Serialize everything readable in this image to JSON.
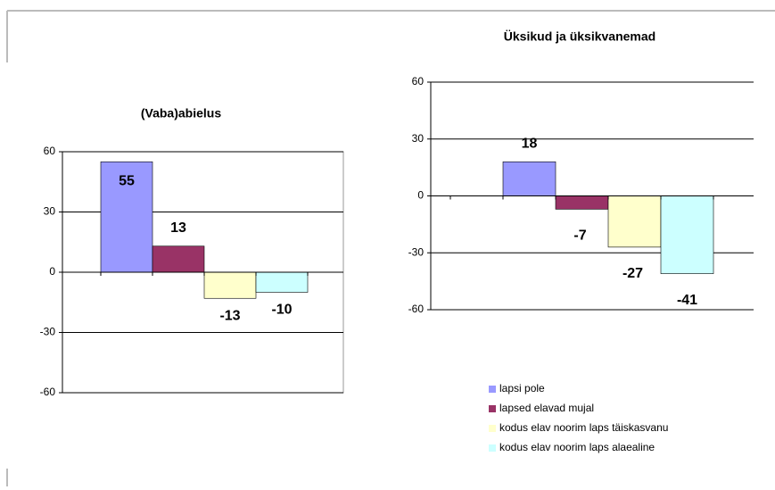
{
  "chart_data": [
    {
      "type": "bar",
      "title": "(Vaba)abielus",
      "series": [
        {
          "color": "#9999ff",
          "values": [
            55
          ]
        },
        {
          "color": "#993366",
          "values": [
            13
          ]
        },
        {
          "color": "#ffffcc",
          "values": [
            -13
          ]
        },
        {
          "color": "#ccffff",
          "values": [
            -10
          ]
        }
      ],
      "ylim": [
        -60,
        60
      ],
      "yticks": [
        -60,
        -30,
        0,
        30,
        60
      ],
      "grid": true
    },
    {
      "type": "bar",
      "title": "Üksikud ja üksikvanemad",
      "series": [
        {
          "name": "lapsi pole",
          "color": "#9999ff",
          "values": [
            18
          ]
        },
        {
          "name": "lapsed elavad mujal",
          "color": "#993366",
          "values": [
            -7
          ]
        },
        {
          "name": "kodus elav noorim laps täiskasvanu",
          "color": "#ffffcc",
          "values": [
            -27
          ]
        },
        {
          "name": "kodus elav noorim laps alaealine",
          "color": "#ccffff",
          "values": [
            -41
          ]
        }
      ],
      "ylim": [
        -60,
        60
      ],
      "yticks": [
        -60,
        -30,
        0,
        30,
        60
      ],
      "grid": true,
      "legend": "bottom"
    }
  ]
}
